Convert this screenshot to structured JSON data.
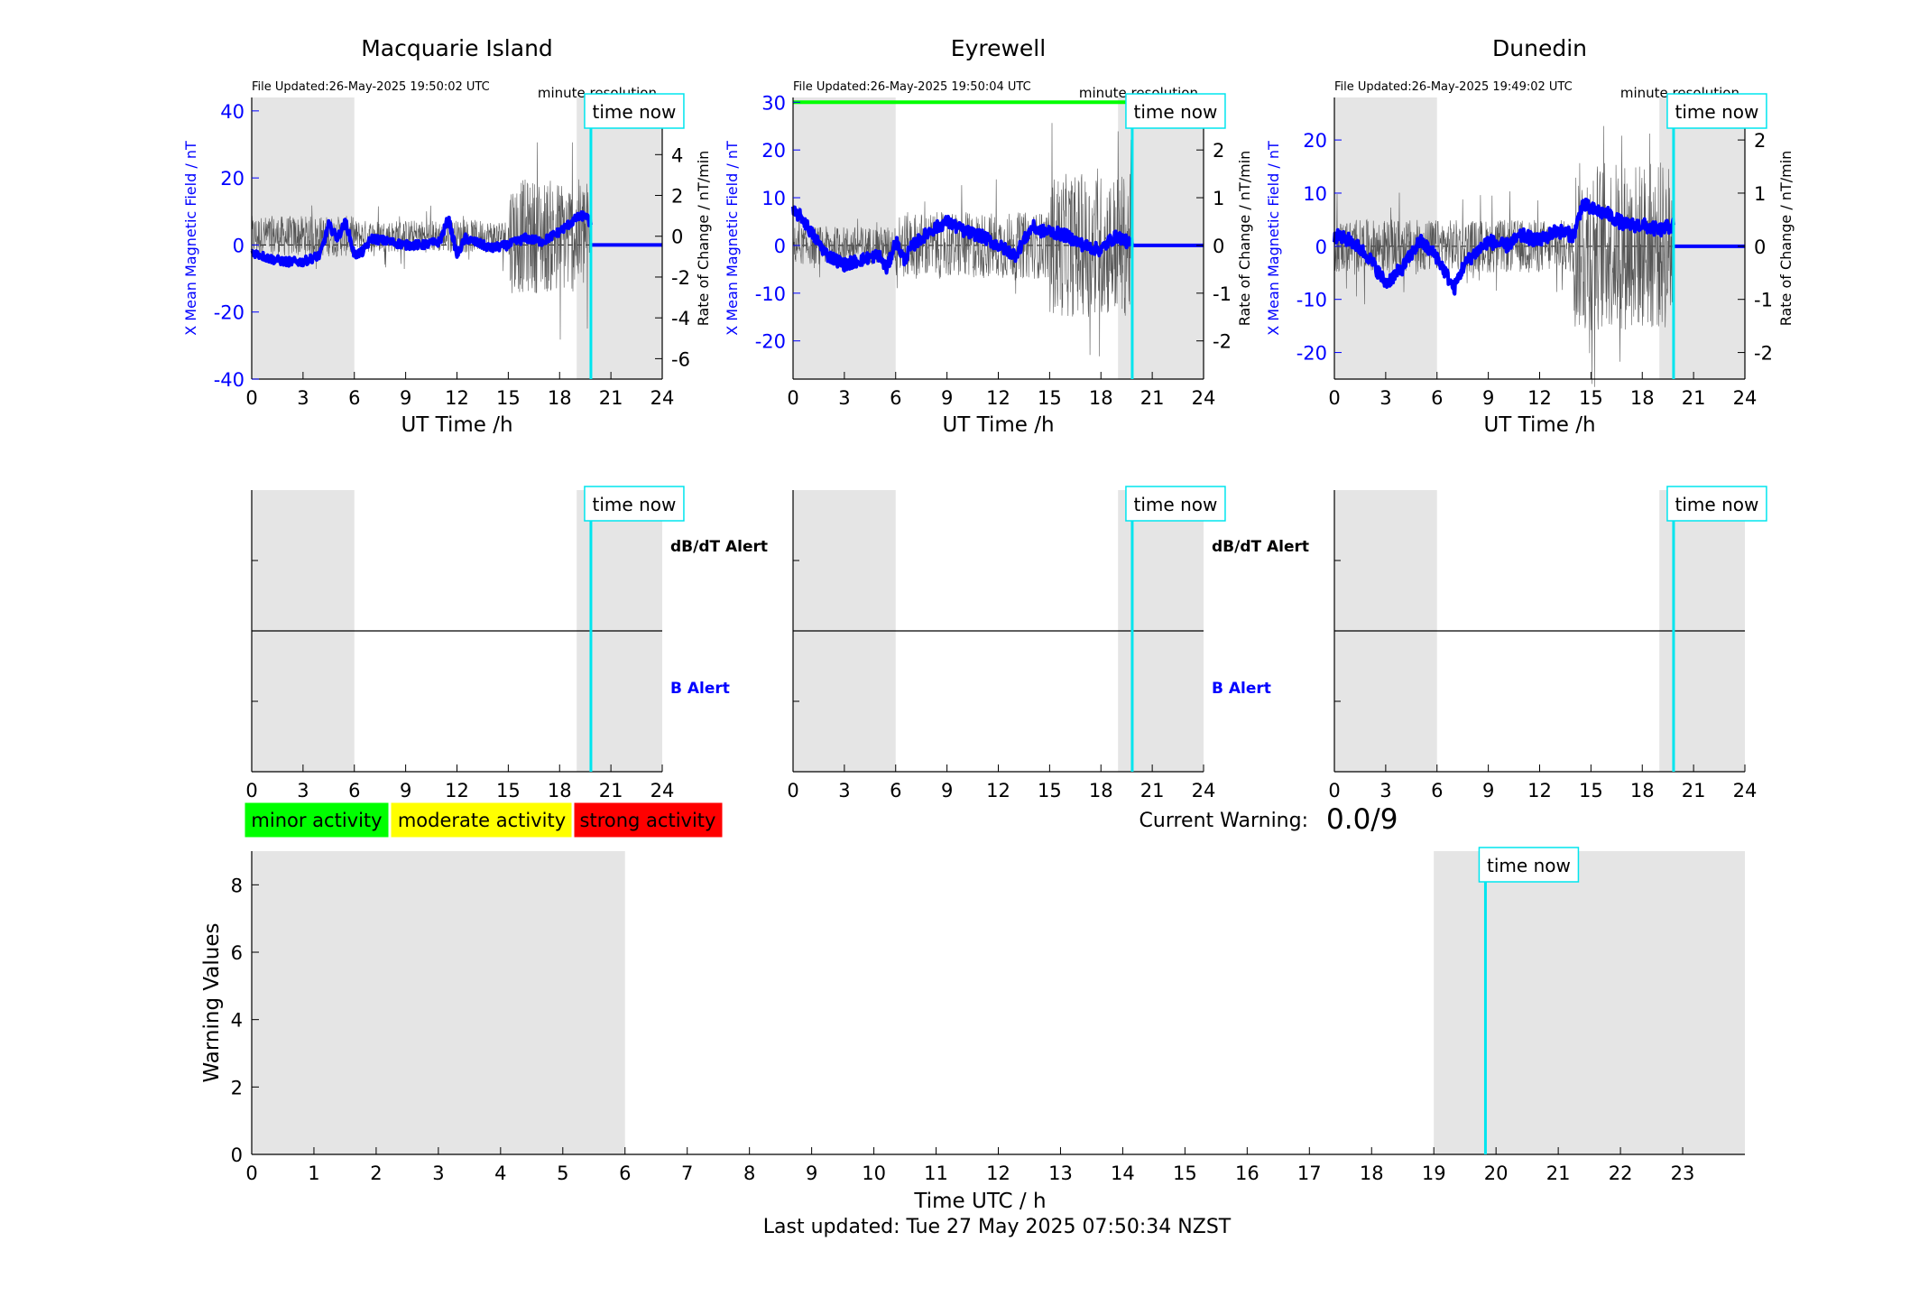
{
  "colors": {
    "night_shading": "#e5e5e5",
    "b_trace": "#0000ff",
    "rate_trace": "#555555",
    "time_now": "#00e5ee",
    "alert_green": "#00ff00",
    "minor": "#00ff00",
    "moderate": "#ffff00",
    "strong": "#ff0000",
    "b_alert_label": "#0000ff"
  },
  "labels": {
    "time_now": "time now",
    "minute_resolution": "minute resolution",
    "ut_time": "UT Time /h",
    "left_axis": "X Mean Magnetic Field / nT",
    "right_axis": "Rate of Change / nT/min",
    "dbdt_alert": "dB/dT Alert",
    "b_alert": "B Alert",
    "current_warning_label": "Current Warning:",
    "current_warning_value": "0.0/9",
    "warning_ylabel": "Warning Values",
    "warning_xlabel": "Time UTC / h",
    "last_updated": "Last updated: Tue 27 May 2025 07:50:34 NZST"
  },
  "legend": {
    "minor": "minor activity",
    "moderate": "moderate activity",
    "strong": "strong activity"
  },
  "chart_data": [
    {
      "type": "line",
      "title": "Macquarie Island",
      "file_updated": "File Updated:26-May-2025 19:50:02 UTC",
      "xlabel": "UT Time /h",
      "ylabel": "X Mean Magnetic Field / nT",
      "ylabel_right": "Rate of Change / nT/min",
      "xlim": [
        0,
        24
      ],
      "ylim": [
        -40,
        44
      ],
      "ylim_right": [
        -7,
        6.8
      ],
      "xticks": [
        0,
        3,
        6,
        9,
        12,
        15,
        18,
        21,
        24
      ],
      "yticks": [
        -40,
        -20,
        0,
        20,
        40
      ],
      "yticks_right": [
        -6,
        -4,
        -2,
        0,
        2,
        4,
        6
      ],
      "night_hours": [
        [
          0,
          6
        ],
        [
          19.0,
          24
        ]
      ],
      "time_now": 19.83,
      "series_b": {
        "x": [
          0,
          1,
          2,
          3,
          4,
          4.5,
          5,
          5.5,
          6,
          6.5,
          7,
          8,
          9,
          10,
          11,
          11.5,
          12,
          12.5,
          13,
          14,
          15,
          16,
          17,
          18,
          18.5,
          19,
          19.5,
          19.83
        ],
        "y": [
          -2,
          -4,
          -5,
          -5,
          -3,
          6,
          2,
          7,
          -3,
          -2,
          2,
          1,
          0,
          0,
          1,
          8,
          -3,
          2,
          1,
          -1,
          0,
          2,
          1,
          4,
          6,
          8,
          9,
          6
        ]
      },
      "rate_band": [
        [
          0,
          6,
          1.0
        ],
        [
          6,
          15,
          0.8
        ],
        [
          15,
          19.83,
          2.8
        ]
      ],
      "flat_after_now": 0
    },
    {
      "type": "line",
      "title": "Eyrewell",
      "file_updated": "File Updated:26-May-2025 19:50:04 UTC",
      "xlabel": "UT Time /h",
      "ylabel": "X Mean Magnetic Field / nT",
      "ylabel_right": "Rate of Change / nT/min",
      "xlim": [
        0,
        24
      ],
      "ylim": [
        -28,
        31
      ],
      "ylim_right": [
        -2.8,
        3.1
      ],
      "xticks": [
        0,
        3,
        6,
        9,
        12,
        15,
        18,
        21,
        24
      ],
      "yticks": [
        -20,
        -10,
        0,
        10,
        20,
        30
      ],
      "yticks_right": [
        -2,
        -1,
        0,
        1,
        2,
        3
      ],
      "night_hours": [
        [
          0,
          6
        ],
        [
          19.0,
          24
        ]
      ],
      "time_now": 19.83,
      "alert_line": {
        "value": 30,
        "x_end": 19.83
      },
      "series_b": {
        "x": [
          0,
          0.5,
          1,
          2,
          3,
          4,
          5,
          5.5,
          6,
          6.5,
          7,
          8,
          9,
          10,
          11,
          12,
          13,
          14,
          14.5,
          15,
          16,
          17,
          18,
          18.5,
          19,
          19.83
        ],
        "y": [
          7,
          6,
          3,
          -2,
          -4,
          -3,
          -2,
          -5,
          1,
          -3,
          0,
          3,
          5,
          3,
          2,
          0,
          -2,
          4,
          3,
          3,
          2,
          0,
          -1,
          1,
          2,
          0
        ]
      },
      "rate_band": [
        [
          0,
          6,
          0.4
        ],
        [
          6,
          15,
          0.7
        ],
        [
          15,
          19.83,
          1.5
        ]
      ],
      "flat_after_now": 0
    },
    {
      "type": "line",
      "title": "Dunedin",
      "file_updated": "File Updated:26-May-2025 19:49:02 UTC",
      "xlabel": "UT Time /h",
      "ylabel": "X Mean Magnetic Field / nT",
      "ylabel_right": "Rate of Change / nT/min",
      "xlim": [
        0,
        24
      ],
      "ylim": [
        -25,
        28
      ],
      "ylim_right": [
        -2.5,
        2.8
      ],
      "xticks": [
        0,
        3,
        6,
        9,
        12,
        15,
        18,
        21,
        24
      ],
      "yticks": [
        -20,
        -10,
        0,
        10,
        20
      ],
      "yticks_right": [
        -2,
        -1,
        0,
        1,
        2
      ],
      "night_hours": [
        [
          0,
          6
        ],
        [
          19.0,
          24
        ]
      ],
      "time_now": 19.83,
      "series_b": {
        "x": [
          0,
          1,
          2,
          3,
          4,
          5,
          6,
          6.5,
          7,
          7.5,
          8,
          9,
          10,
          11,
          12,
          13,
          14,
          14.5,
          15,
          16,
          17,
          18,
          19,
          19.83
        ],
        "y": [
          2,
          1,
          -2,
          -7,
          -4,
          1,
          -2,
          -5,
          -8,
          -4,
          -2,
          1,
          0,
          2,
          1,
          3,
          2,
          8,
          7,
          6,
          4,
          4,
          3,
          4
        ]
      },
      "rate_band": [
        [
          0,
          6,
          0.5
        ],
        [
          6,
          14,
          0.5
        ],
        [
          14,
          19.83,
          1.6
        ]
      ],
      "flat_after_now": 0
    },
    {
      "type": "line",
      "title": "",
      "xlim": [
        0,
        24
      ],
      "ylim": [
        0,
        1
      ],
      "xticks": [
        0,
        3,
        6,
        9,
        12,
        15,
        18,
        21,
        24
      ],
      "night_hours": [
        [
          0,
          6
        ],
        [
          19.0,
          24
        ]
      ],
      "time_now": 19.83,
      "threshold_line": 0.5,
      "labels_right": [
        "dB/dT Alert",
        "B Alert"
      ]
    },
    {
      "type": "line",
      "title": "",
      "xlim": [
        0,
        24
      ],
      "ylim": [
        0,
        1
      ],
      "xticks": [
        0,
        3,
        6,
        9,
        12,
        15,
        18,
        21,
        24
      ],
      "night_hours": [
        [
          0,
          6
        ],
        [
          19.0,
          24
        ]
      ],
      "time_now": 19.83,
      "threshold_line": 0.5,
      "labels_right": [
        "dB/dT Alert",
        "B Alert"
      ]
    },
    {
      "type": "line",
      "title": "",
      "xlim": [
        0,
        24
      ],
      "ylim": [
        0,
        1
      ],
      "xticks": [
        0,
        3,
        6,
        9,
        12,
        15,
        18,
        21,
        24
      ],
      "night_hours": [
        [
          0,
          6
        ],
        [
          19.0,
          24
        ]
      ],
      "time_now": 19.83,
      "threshold_line": 0.5,
      "labels_right": []
    },
    {
      "type": "line",
      "title": "",
      "xlabel": "Time UTC / h",
      "ylabel": "Warning Values",
      "xlim": [
        0,
        24
      ],
      "ylim": [
        0,
        9
      ],
      "xticks": [
        0,
        1,
        2,
        3,
        4,
        5,
        6,
        7,
        8,
        9,
        10,
        11,
        12,
        13,
        14,
        15,
        16,
        17,
        18,
        19,
        20,
        21,
        22,
        23
      ],
      "yticks": [
        0,
        2,
        4,
        6,
        8
      ],
      "night_hours": [
        [
          0,
          6
        ],
        [
          19.0,
          24
        ]
      ],
      "time_now": 19.83,
      "current_warning": "0.0/9"
    }
  ]
}
